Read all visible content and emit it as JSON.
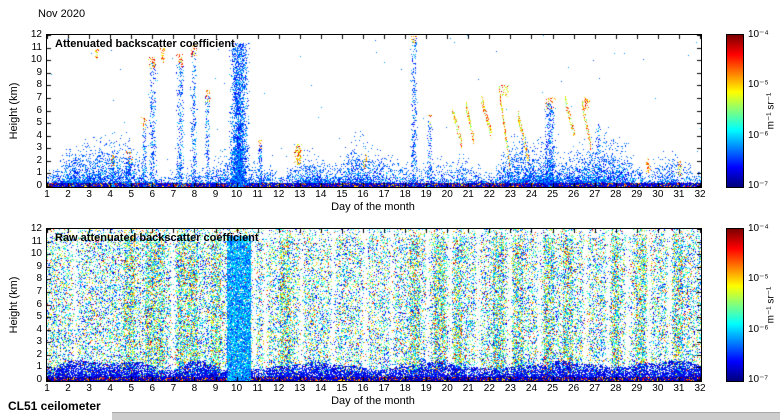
{
  "figure": {
    "date_label": "Nov 2020",
    "instrument_label": "CL51 ceilometer",
    "background_color": "#ffffff"
  },
  "chart_data": [
    {
      "type": "heatmap",
      "title": "Attenuated backscatter coefficient",
      "xlabel": "Day of the month",
      "ylabel": "Height (km)",
      "xlim": [
        1,
        32
      ],
      "ylim": [
        0,
        12
      ],
      "x_ticks": [
        1,
        2,
        3,
        4,
        5,
        6,
        7,
        8,
        9,
        10,
        11,
        12,
        13,
        14,
        15,
        16,
        17,
        18,
        19,
        20,
        21,
        22,
        23,
        24,
        25,
        26,
        27,
        28,
        29,
        30,
        31,
        32
      ],
      "y_ticks": [
        0,
        1,
        2,
        3,
        4,
        5,
        6,
        7,
        8,
        9,
        10,
        11,
        12
      ],
      "colorbar": {
        "colormap": "jet",
        "scale": "log10",
        "ticks": [
          "10⁻⁴",
          "10⁻⁵",
          "10⁻⁶",
          "10⁻⁷"
        ],
        "tick_exponents": [
          -4,
          -5,
          -6,
          -7
        ],
        "unit": "m⁻¹ sr⁻¹"
      },
      "features": {
        "boundary_layer_top_km_range": [
          0.45,
          1.95
        ],
        "plumes": [
          {
            "day": 2.3,
            "w": 0.3,
            "top": 2.6,
            "kind": "solid",
            "dens": 0.5
          },
          {
            "day": 3.35,
            "w": 0.25,
            "top": 10.9,
            "base": 10.1,
            "kind": "dots",
            "dens": 0.4
          },
          {
            "day": 4.1,
            "w": 0.3,
            "top": 2.1,
            "kind": "solid",
            "dens": 0.6,
            "cloudtop": true
          },
          {
            "day": 4.85,
            "w": 0.45,
            "top": 2.3,
            "kind": "solid",
            "dens": 0.7,
            "cloudtop": true
          },
          {
            "day": 5.6,
            "w": 0.35,
            "top": 5.0,
            "kind": "solid",
            "dens": 0.5,
            "cloudtop": true
          },
          {
            "day": 6.0,
            "w": 0.5,
            "top": 9.8,
            "kind": "solid",
            "dens": 0.55,
            "cloudtop": true
          },
          {
            "day": 6.5,
            "w": 0.3,
            "top": 11.0,
            "base": 9.8,
            "kind": "dots",
            "dens": 0.4
          },
          {
            "day": 7.3,
            "w": 0.5,
            "top": 10.0,
            "kind": "solid",
            "dens": 0.5,
            "cloudtop": true
          },
          {
            "day": 7.95,
            "w": 0.4,
            "top": 10.8,
            "kind": "solid",
            "dens": 0.5,
            "cloudtop": true
          },
          {
            "day": 8.6,
            "w": 0.35,
            "top": 7.2,
            "kind": "solid",
            "dens": 0.45,
            "cloudtop": true
          },
          {
            "day": 10.1,
            "w": 1.15,
            "top": 11.4,
            "kind": "solid",
            "dens": 1.0
          },
          {
            "day": 11.1,
            "w": 0.3,
            "top": 3.3,
            "kind": "solid",
            "dens": 0.5,
            "cloudtop": true
          },
          {
            "day": 12.9,
            "w": 0.45,
            "top": 2.9,
            "kind": "dots",
            "dens": 0.5,
            "cloudtop": true
          },
          {
            "day": 16.1,
            "w": 0.3,
            "top": 2.6,
            "kind": "dots",
            "dens": 0.35
          },
          {
            "day": 18.4,
            "w": 0.4,
            "top": 11.8,
            "kind": "solid",
            "dens": 0.6,
            "cloudtop": true
          },
          {
            "day": 19.15,
            "w": 0.3,
            "top": 5.2,
            "kind": "solid",
            "dens": 0.55,
            "cloudtop": true
          },
          {
            "day": 20.45,
            "w": 0.5,
            "top": 6.2,
            "base": 3.2,
            "kind": "streak"
          },
          {
            "day": 21.05,
            "w": 0.4,
            "top": 6.6,
            "base": 3.6,
            "kind": "streak"
          },
          {
            "day": 21.85,
            "w": 0.5,
            "top": 7.0,
            "base": 4.0,
            "kind": "streak"
          },
          {
            "day": 22.7,
            "w": 0.5,
            "top": 7.6,
            "base": 1.6,
            "kind": "streak",
            "cloudtop": true
          },
          {
            "day": 23.6,
            "w": 0.5,
            "top": 5.6,
            "base": 2.0,
            "kind": "streak"
          },
          {
            "day": 24.85,
            "w": 0.6,
            "top": 6.6,
            "kind": "solid",
            "dens": 0.6,
            "cloudtop": true
          },
          {
            "day": 25.8,
            "w": 0.5,
            "top": 7.0,
            "base": 4.0,
            "kind": "streak"
          },
          {
            "day": 26.6,
            "w": 0.45,
            "top": 6.6,
            "base": 3.0,
            "kind": "streak",
            "cloudtop": true
          },
          {
            "day": 27.15,
            "w": 0.3,
            "top": 5.0,
            "kind": "solid",
            "dens": 0.4
          },
          {
            "day": 29.5,
            "w": 0.35,
            "top": 2.3,
            "kind": "dots",
            "dens": 0.4
          },
          {
            "day": 31.0,
            "w": 0.3,
            "top": 2.0,
            "kind": "dots",
            "dens": 0.45
          }
        ]
      }
    },
    {
      "type": "heatmap",
      "title": "Raw attenuated backscatter coefficient",
      "xlabel": "Day of the month",
      "ylabel": "Height (km)",
      "xlim": [
        1,
        32
      ],
      "ylim": [
        0,
        12
      ],
      "x_ticks": [
        1,
        2,
        3,
        4,
        5,
        6,
        7,
        8,
        9,
        10,
        11,
        12,
        13,
        14,
        15,
        16,
        17,
        18,
        19,
        20,
        21,
        22,
        23,
        24,
        25,
        26,
        27,
        28,
        29,
        30,
        31,
        32
      ],
      "y_ticks": [
        0,
        1,
        2,
        3,
        4,
        5,
        6,
        7,
        8,
        9,
        10,
        11,
        12
      ],
      "colorbar": {
        "colormap": "jet",
        "scale": "log10",
        "ticks": [
          "10⁻⁴",
          "10⁻⁵",
          "10⁻⁶",
          "10⁻⁷"
        ],
        "tick_exponents": [
          -4,
          -5,
          -6,
          -7
        ],
        "unit": "m⁻¹ sr⁻¹"
      },
      "features": {
        "noise_density": 0.4,
        "white_stripe_days": [
          2.3,
          6.95,
          10.8,
          11.35,
          13.05,
          14.55,
          16.1,
          17.35,
          19.05,
          20.15,
          21.45,
          22.95,
          24.35,
          26.55,
          27.65,
          28.55,
          29.55,
          30.55
        ],
        "dense_column_days": [
          4.9,
          5.9,
          6.35,
          7.4,
          7.9,
          9.0,
          12.3,
          18.45,
          19.6,
          20.45,
          22.4,
          23.3,
          24.8,
          25.7,
          27.9,
          29.2,
          30.9
        ],
        "plume": {
          "day": 10.1,
          "w": 1.15,
          "top": 11.5
        }
      }
    }
  ]
}
